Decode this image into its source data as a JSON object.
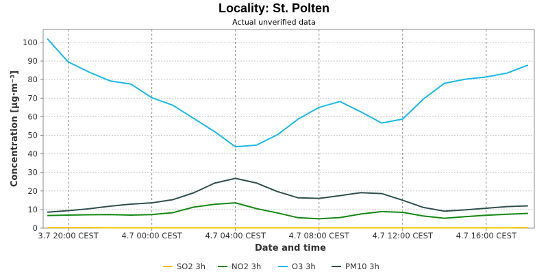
{
  "chart_data": {
    "type": "line",
    "title": "Locality: St. Polten",
    "subtitle": "Actual unverified data",
    "xlabel": "Date and time",
    "ylabel": "Concentration [µg·m⁻³]",
    "ylim": [
      0,
      107
    ],
    "yticks": [
      0,
      10,
      20,
      30,
      40,
      50,
      60,
      70,
      80,
      90,
      100
    ],
    "xticks": [
      {
        "label": "3.7 20:00 CEST",
        "x": 1
      },
      {
        "label": "4.7 00:00 CEST",
        "x": 5
      },
      {
        "label": "4.7 04:00 CEST",
        "x": 9
      },
      {
        "label": "4.7 08:00 CEST",
        "x": 13
      },
      {
        "label": "4.7 12:00 CEST",
        "x": 17
      },
      {
        "label": "4.7 16:00 CEST",
        "x": 21
      }
    ],
    "xlim": [
      -0.2,
      23.3
    ],
    "x": [
      0,
      1,
      2,
      3,
      4,
      5,
      6,
      7,
      8,
      9,
      10,
      11,
      12,
      13,
      14,
      15,
      16,
      17,
      18,
      19,
      20,
      21,
      22,
      23
    ],
    "grid": true,
    "legend_position": "bottom",
    "series": [
      {
        "name": "SO2 3h",
        "color": "#f2c600",
        "values": [
          0.3,
          0.3,
          0.3,
          0.2,
          0.2,
          0.2,
          0.2,
          0.2,
          0.2,
          0.2,
          0.2,
          0.2,
          0.2,
          0.2,
          0.2,
          0.2,
          0.2,
          0.2,
          0.2,
          0.2,
          0.2,
          0.2,
          0.2,
          0.3
        ]
      },
      {
        "name": "NO2 3h",
        "color": "#118811",
        "values": [
          6.8,
          7.0,
          7.2,
          7.3,
          7.0,
          7.3,
          8.3,
          11.3,
          12.8,
          13.6,
          10.5,
          8.2,
          5.6,
          5.0,
          5.7,
          7.6,
          8.9,
          8.5,
          6.5,
          5.3,
          6.2,
          6.9,
          7.5,
          7.9
        ]
      },
      {
        "name": "O3 3h",
        "color": "#1ab8e8",
        "values": [
          102.0,
          89.5,
          84.0,
          79.3,
          77.6,
          70.2,
          66.2,
          59.1,
          52.0,
          43.8,
          44.7,
          50.2,
          58.7,
          65.0,
          68.2,
          62.6,
          56.6,
          58.7,
          69.6,
          78.0,
          80.2,
          81.4,
          83.5,
          87.8
        ]
      },
      {
        "name": "PM10 3h",
        "color": "#2f4f4f",
        "values": [
          8.6,
          9.4,
          10.4,
          11.8,
          12.9,
          13.6,
          15.3,
          19.0,
          24.2,
          26.8,
          24.3,
          19.7,
          16.3,
          16.0,
          17.5,
          19.1,
          18.6,
          15.0,
          11.1,
          9.1,
          9.8,
          10.7,
          11.6,
          12.0
        ]
      }
    ]
  }
}
